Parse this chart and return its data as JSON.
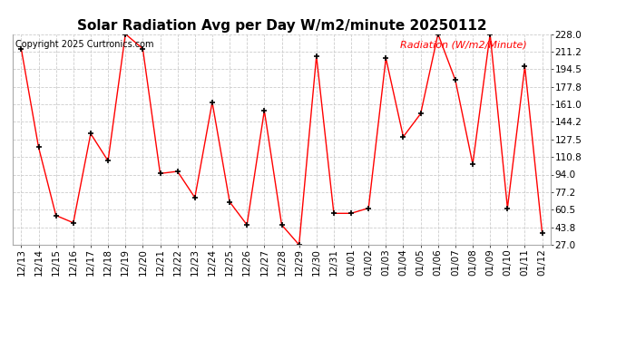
{
  "title": "Solar Radiation Avg per Day W/m2/minute 20250112",
  "copyright": "Copyright 2025 Curtronics.com",
  "legend_label": "Radiation (W/m2/Minute)",
  "dates": [
    "12/13",
    "12/14",
    "12/15",
    "12/16",
    "12/17",
    "12/18",
    "12/19",
    "12/20",
    "12/21",
    "12/22",
    "12/23",
    "12/24",
    "12/25",
    "12/26",
    "12/27",
    "12/28",
    "12/29",
    "12/30",
    "12/31",
    "01/01",
    "01/02",
    "01/03",
    "01/04",
    "01/05",
    "01/06",
    "01/07",
    "01/08",
    "01/09",
    "01/10",
    "01/11",
    "01/12"
  ],
  "values": [
    214.0,
    120.0,
    55.0,
    48.0,
    133.0,
    107.0,
    228.0,
    214.0,
    95.0,
    97.0,
    72.0,
    163.0,
    68.0,
    46.0,
    155.0,
    46.0,
    27.0,
    207.0,
    57.0,
    57.0,
    62.0,
    205.0,
    130.0,
    152.0,
    228.0,
    184.0,
    104.0,
    228.0,
    62.0,
    197.0,
    38.0
  ],
  "line_color": "red",
  "marker_color": "black",
  "marker": "+",
  "bg_color": "white",
  "grid_color": "#cccccc",
  "title_fontsize": 11,
  "tick_fontsize": 7.5,
  "copyright_fontsize": 7,
  "legend_fontsize": 8,
  "ylim_min": 27.0,
  "ylim_max": 228.0,
  "yticks": [
    27.0,
    43.8,
    60.5,
    77.2,
    94.0,
    110.8,
    127.5,
    144.2,
    161.0,
    177.8,
    194.5,
    211.2,
    228.0
  ]
}
